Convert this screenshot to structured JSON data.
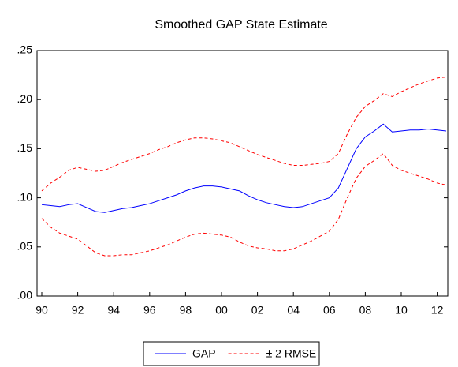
{
  "chart_data": {
    "type": "line",
    "title": "Smoothed GAP State Estimate",
    "categories": [
      "90",
      null,
      null,
      null,
      "92",
      null,
      null,
      null,
      "94",
      null,
      null,
      null,
      "96",
      null,
      null,
      null,
      "98",
      null,
      null,
      null,
      "00",
      null,
      null,
      null,
      "02",
      null,
      null,
      null,
      "04",
      null,
      null,
      null,
      "06",
      null,
      null,
      null,
      "08",
      null,
      null,
      null,
      "10",
      null,
      null,
      null,
      "12",
      null
    ],
    "ylim": [
      0,
      0.25
    ],
    "yticks": [
      {
        "value": 0,
        "label": ".00"
      },
      {
        "value": 0.05,
        "label": ".05"
      },
      {
        "value": 0.1,
        "label": ".10"
      },
      {
        "value": 0.15,
        "label": ".15"
      },
      {
        "value": 0.2,
        "label": ".20"
      },
      {
        "value": 0.25,
        "label": ".25"
      }
    ],
    "grid": false,
    "legend": "bottom",
    "series": [
      {
        "name": "GAP",
        "color": "#0000ff",
        "style": "solid",
        "values": [
          0.093,
          0.092,
          0.091,
          0.093,
          0.094,
          0.09,
          0.086,
          0.085,
          0.087,
          0.089,
          0.09,
          0.092,
          0.094,
          0.097,
          0.1,
          0.103,
          0.107,
          0.11,
          0.112,
          0.112,
          0.111,
          0.109,
          0.107,
          0.102,
          0.098,
          0.095,
          0.093,
          0.091,
          0.09,
          0.091,
          0.094,
          0.097,
          0.1,
          0.11,
          0.13,
          0.15,
          0.162,
          0.168,
          0.175,
          0.167,
          0.168,
          0.169,
          0.169,
          0.17,
          0.169,
          0.168
        ]
      },
      {
        "name": "± 2 RMSE",
        "color": "#ff0000",
        "style": "dashed",
        "upper": [
          0.107,
          0.115,
          0.121,
          0.128,
          0.131,
          0.129,
          0.127,
          0.128,
          0.132,
          0.136,
          0.139,
          0.142,
          0.145,
          0.149,
          0.152,
          0.156,
          0.159,
          0.161,
          0.161,
          0.16,
          0.158,
          0.156,
          0.152,
          0.148,
          0.144,
          0.141,
          0.138,
          0.135,
          0.133,
          0.133,
          0.134,
          0.135,
          0.137,
          0.145,
          0.165,
          0.182,
          0.193,
          0.199,
          0.206,
          0.203,
          0.208,
          0.212,
          0.216,
          0.219,
          0.222,
          0.223
        ],
        "lower": [
          0.079,
          0.07,
          0.064,
          0.061,
          0.058,
          0.051,
          0.044,
          0.041,
          0.041,
          0.042,
          0.042,
          0.044,
          0.046,
          0.049,
          0.052,
          0.056,
          0.06,
          0.063,
          0.064,
          0.063,
          0.062,
          0.06,
          0.055,
          0.051,
          0.049,
          0.048,
          0.046,
          0.046,
          0.048,
          0.052,
          0.056,
          0.061,
          0.066,
          0.078,
          0.1,
          0.12,
          0.132,
          0.138,
          0.145,
          0.133,
          0.128,
          0.125,
          0.122,
          0.119,
          0.115,
          0.113
        ]
      }
    ]
  }
}
